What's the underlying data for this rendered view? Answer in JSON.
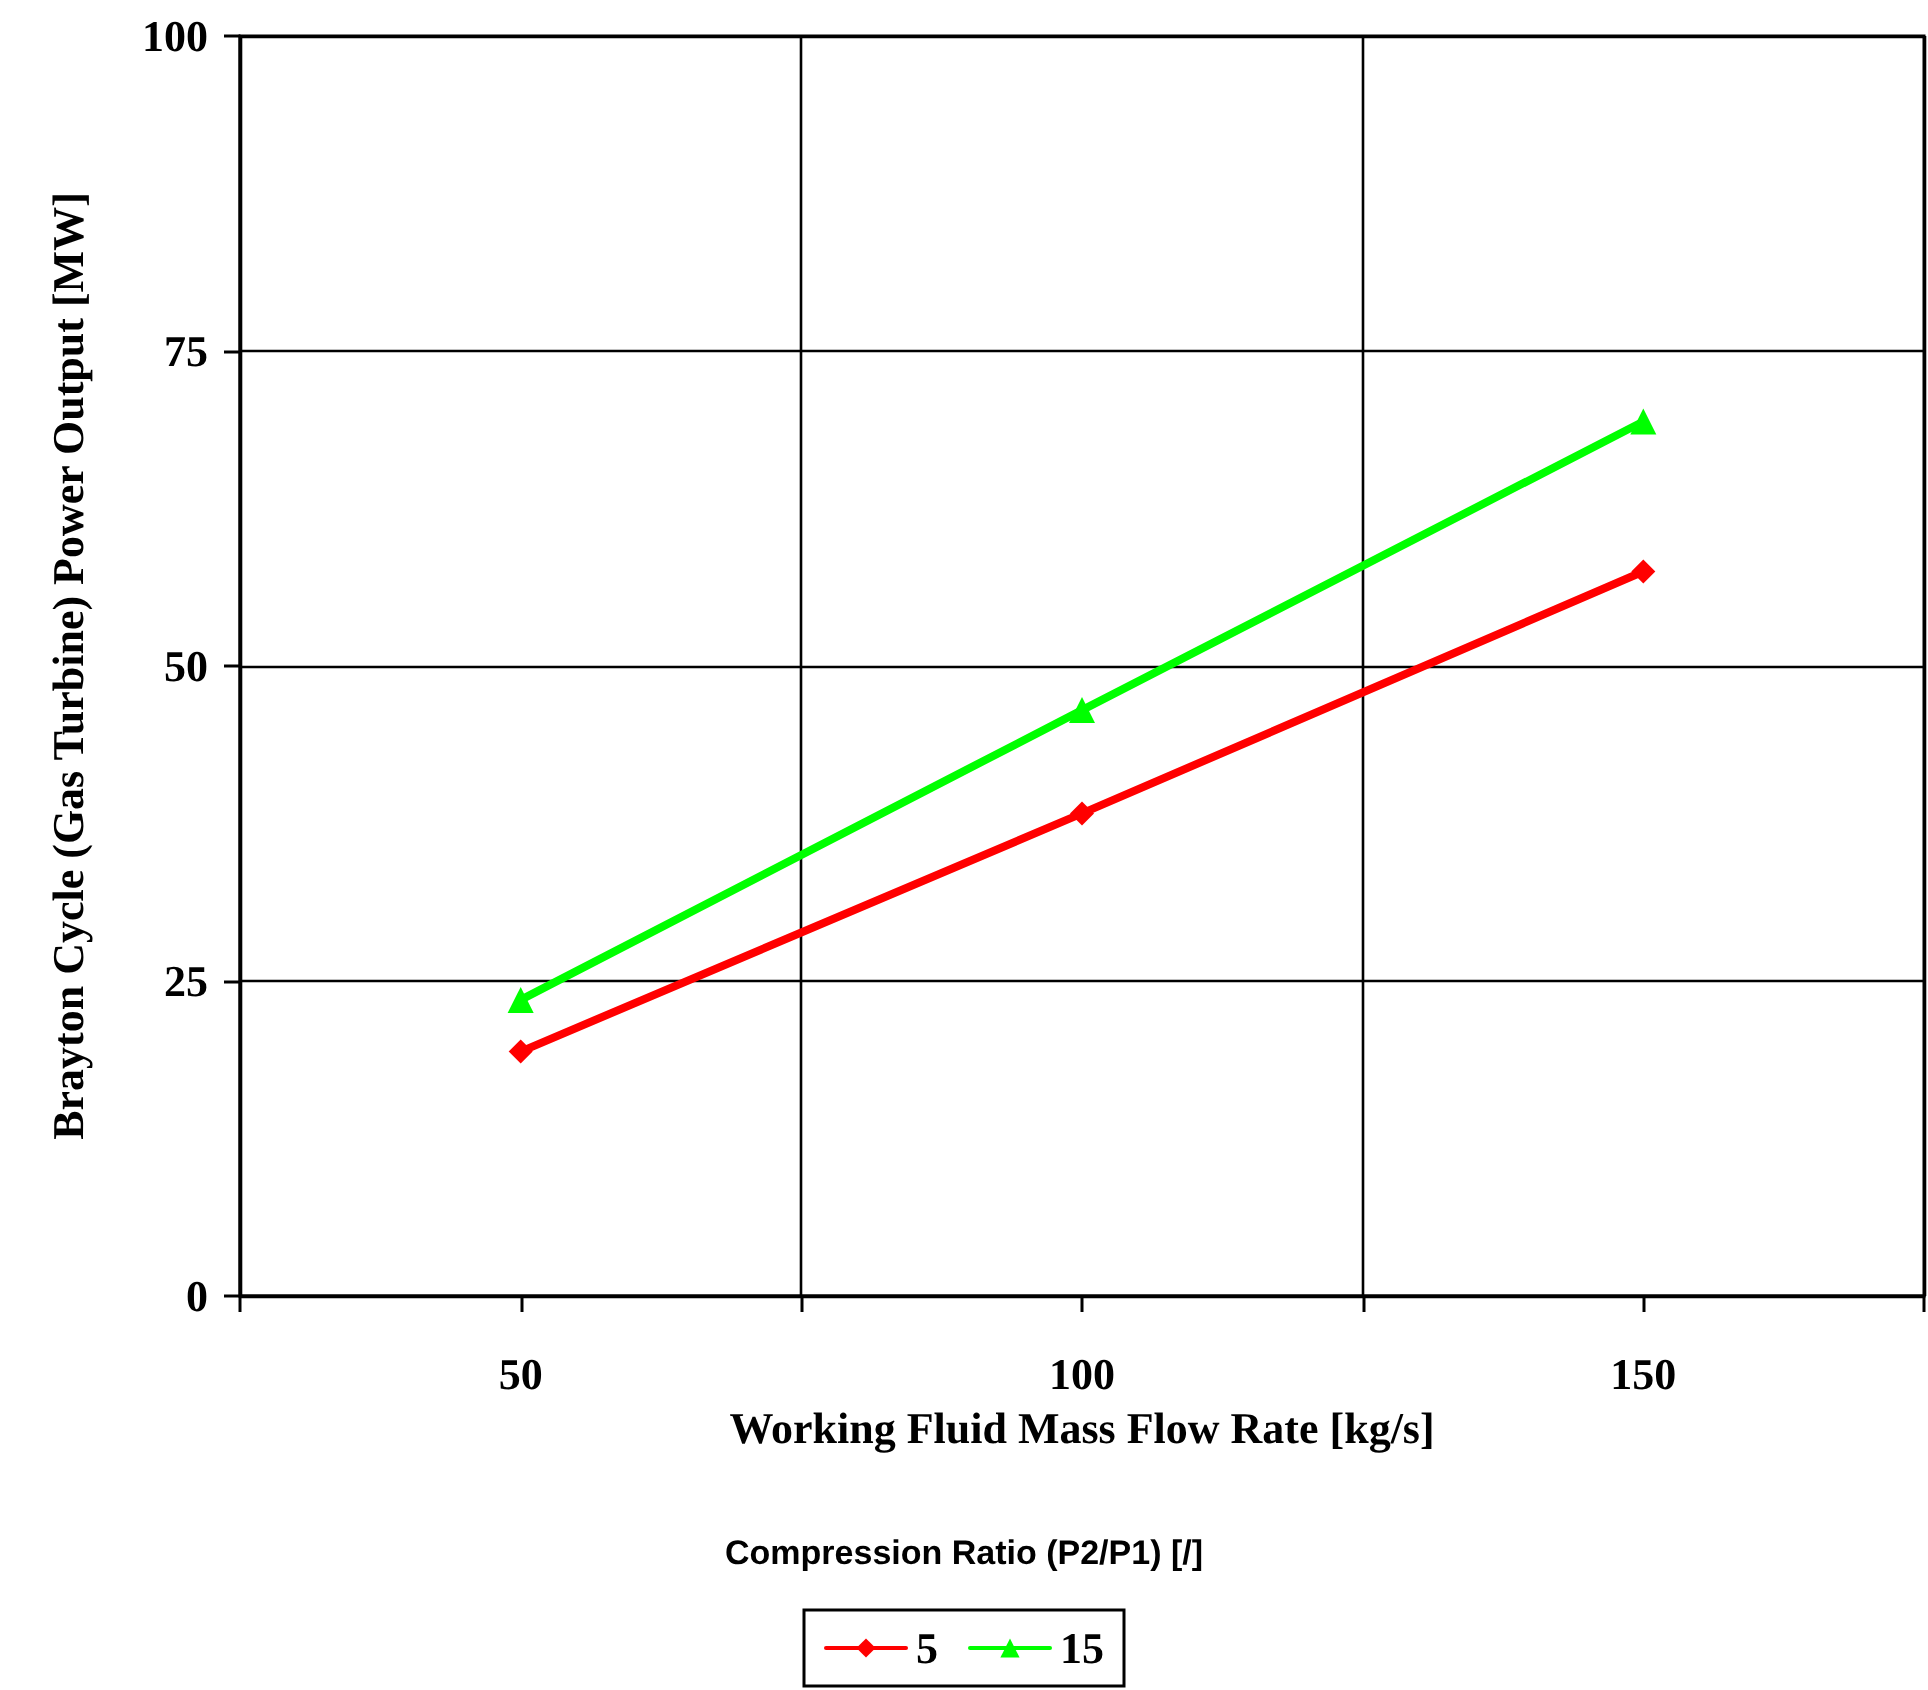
{
  "chart_data": {
    "type": "line",
    "xlabel": "Working Fluid Mass Flow Rate [kg/s]",
    "ylabel": "Brayton Cycle (Gas Turbine) Power Output [MW]",
    "legend_title": "Compression Ratio (P2/P1) [/]",
    "x": [
      50,
      100,
      150
    ],
    "series": [
      {
        "name": "5",
        "color": "#ff0000",
        "marker": "diamond",
        "values": [
          19.4,
          38.3,
          57.5
        ]
      },
      {
        "name": "15",
        "color": "#00ff00",
        "marker": "triangle",
        "values": [
          23.5,
          46.5,
          69.4
        ]
      }
    ],
    "xlim": [
      25,
      175
    ],
    "xticks": [
      {
        "value": 25,
        "label": null
      },
      50,
      {
        "value": 75,
        "label": null
      },
      100,
      {
        "value": 125,
        "label": null
      },
      150,
      {
        "value": 175,
        "label": null
      }
    ],
    "ylim": [
      0,
      100
    ],
    "yticks": [
      0,
      25,
      50,
      75,
      100
    ],
    "grid": true,
    "legend": "bottom",
    "line_style": "solid"
  }
}
